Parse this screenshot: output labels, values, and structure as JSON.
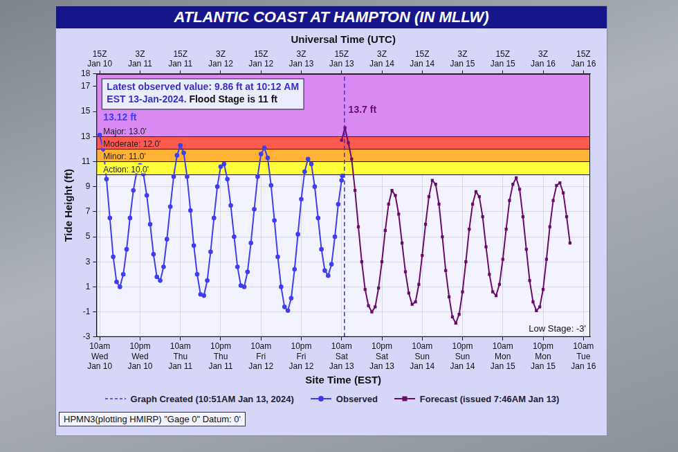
{
  "chart_data": {
    "type": "line",
    "title": "ATLANTIC COAST AT HAMPTON (IN MLLW)",
    "x_label": "Site Time (EST)",
    "x2_label": "Universal Time (UTC)",
    "y_label": "Tide Height (ft)",
    "xlim": [
      -1,
      146
    ],
    "xticks": [
      {
        "value": 0,
        "label": "10am\nWed\nJan 10"
      },
      {
        "value": 12,
        "label": "10pm\nWed\nJan 10"
      },
      {
        "value": 24,
        "label": "10am\nThu\nJan 11"
      },
      {
        "value": 36,
        "label": "10pm\nThu\nJan 11"
      },
      {
        "value": 48,
        "label": "10am\nFri\nJan 12"
      },
      {
        "value": 60,
        "label": "10pm\nFri\nJan 12"
      },
      {
        "value": 72,
        "label": "10am\nSat\nJan 13"
      },
      {
        "value": 84,
        "label": "10pm\nSat\nJan 13"
      },
      {
        "value": 96,
        "label": "10am\nSun\nJan 14"
      },
      {
        "value": 108,
        "label": "10pm\nSun\nJan 14"
      },
      {
        "value": 120,
        "label": "10am\nMon\nJan 15"
      },
      {
        "value": 132,
        "label": "10pm\nMon\nJan 15"
      },
      {
        "value": 144,
        "label": "10am\nTue\nJan 16"
      }
    ],
    "x2lim": [
      -1,
      146
    ],
    "x2ticks": [
      {
        "value": 0,
        "label": "15Z\nJan 10"
      },
      {
        "value": 12,
        "label": "3Z\nJan 11"
      },
      {
        "value": 24,
        "label": "15Z\nJan 11"
      },
      {
        "value": 36,
        "label": "3Z\nJan 12"
      },
      {
        "value": 48,
        "label": "15Z\nJan 12"
      },
      {
        "value": 60,
        "label": "3Z\nJan 13"
      },
      {
        "value": 72,
        "label": "15Z\nJan 13"
      },
      {
        "value": 84,
        "label": "3Z\nJan 14"
      },
      {
        "value": 96,
        "label": "15Z\nJan 14"
      },
      {
        "value": 108,
        "label": "3Z\nJan 15"
      },
      {
        "value": 120,
        "label": "15Z\nJan 15"
      },
      {
        "value": 132,
        "label": "3Z\nJan 16"
      },
      {
        "value": 144,
        "label": "15Z\nJan 16"
      }
    ],
    "ylim": [
      -3,
      18
    ],
    "yticks": [
      -3,
      -1,
      1,
      3,
      5,
      7,
      9,
      11,
      13,
      15,
      17,
      18
    ],
    "grid": true,
    "legend": "bottom",
    "thresholds": [
      {
        "label": "Action: 10.0'",
        "from": 10,
        "to": 11,
        "color": "#ffff3c"
      },
      {
        "label": "Minor: 11.0'",
        "from": 11,
        "to": 12,
        "color": "#ffb236"
      },
      {
        "label": "Moderate: 12.0'",
        "from": 12,
        "to": 13,
        "color": "#ff5a4e"
      },
      {
        "label": "Major: 13.0'",
        "from": 13,
        "to": 18,
        "color": "#d98af2"
      }
    ],
    "series": [
      {
        "name": "Graph Created (10:51AM Jan 13, 2024)",
        "type": "vline",
        "x": 72.85,
        "color": "#3333dd",
        "line_style": "dashed"
      },
      {
        "name": "Observed",
        "color": "#3d3df2",
        "marker": "circle",
        "line_style": "solid",
        "x": [
          0,
          1,
          2,
          3,
          4,
          5,
          6,
          7,
          8,
          9,
          10,
          11,
          12,
          13,
          14,
          15,
          16,
          17,
          18,
          19,
          20,
          21,
          22,
          23,
          24,
          25,
          26,
          27,
          28,
          29,
          30,
          31,
          32,
          33,
          34,
          35,
          36,
          37,
          38,
          39,
          40,
          41,
          42,
          43,
          44,
          45,
          46,
          47,
          48,
          49,
          50,
          51,
          52,
          53,
          54,
          55,
          56,
          57,
          58,
          59,
          60,
          61,
          62,
          63,
          64,
          65,
          66,
          67,
          68,
          69,
          70,
          71,
          72,
          72.2
        ],
        "values": [
          13.12,
          12.0,
          9.6,
          6.5,
          3.4,
          1.4,
          1.0,
          2.0,
          4.0,
          6.5,
          8.7,
          10.2,
          10.7,
          10.0,
          8.3,
          6.0,
          3.6,
          1.8,
          1.5,
          2.6,
          4.8,
          7.4,
          9.8,
          11.5,
          12.3,
          11.7,
          9.8,
          7.1,
          4.3,
          2.0,
          0.4,
          0.3,
          1.5,
          3.8,
          6.5,
          9.0,
          10.6,
          10.8,
          9.6,
          7.5,
          5.0,
          2.6,
          1.1,
          1.0,
          2.2,
          4.5,
          7.2,
          9.8,
          11.6,
          12.1,
          11.3,
          9.1,
          6.3,
          3.4,
          1.0,
          -0.6,
          -0.9,
          0.1,
          2.4,
          5.2,
          8.0,
          10.2,
          11.2,
          10.8,
          9.0,
          6.5,
          4.0,
          2.3,
          1.9,
          2.8,
          5.0,
          7.6,
          9.5,
          9.86
        ]
      },
      {
        "name": "Forecast (issued 7:46AM Jan 13)",
        "color": "#6a0b6a",
        "marker": "square",
        "line_style": "solid",
        "x": [
          72,
          73,
          74,
          75,
          76,
          77,
          78,
          79,
          80,
          81,
          82,
          83,
          84,
          85,
          86,
          87,
          88,
          89,
          90,
          91,
          92,
          93,
          94,
          95,
          96,
          97,
          98,
          99,
          100,
          101,
          102,
          103,
          104,
          105,
          106,
          107,
          108,
          109,
          110,
          111,
          112,
          113,
          114,
          115,
          116,
          117,
          118,
          119,
          120,
          121,
          122,
          123,
          124,
          125,
          126,
          127,
          128,
          129,
          130,
          131,
          132,
          133,
          134,
          135,
          136,
          137,
          138,
          139,
          140
        ],
        "values": [
          12.7,
          13.7,
          12.5,
          11.2,
          8.7,
          5.8,
          3.0,
          0.8,
          -0.5,
          -1.0,
          -0.6,
          0.9,
          3.0,
          5.5,
          7.6,
          8.7,
          8.3,
          6.8,
          4.5,
          2.2,
          0.5,
          -0.4,
          -0.2,
          1.2,
          3.5,
          6.0,
          8.2,
          9.5,
          9.2,
          7.6,
          5.0,
          2.3,
          0.2,
          -1.4,
          -1.9,
          -1.2,
          0.6,
          3.0,
          5.6,
          7.6,
          8.6,
          8.2,
          6.6,
          4.2,
          2.0,
          0.6,
          0.3,
          1.2,
          3.2,
          5.6,
          7.9,
          9.2,
          9.7,
          8.8,
          6.6,
          4.0,
          1.5,
          -0.2,
          -0.9,
          -0.6,
          0.8,
          3.2,
          5.8,
          7.9,
          9.1,
          9.3,
          8.5,
          6.6,
          4.5
        ]
      }
    ],
    "annotations": [
      {
        "text": "13.12 ft",
        "x": 0,
        "y": 13.12,
        "color": "#3d3df2"
      },
      {
        "text": "13.7 ft",
        "x": 73,
        "y": 13.7,
        "color": "#6a0b6a"
      }
    ],
    "info_box": [
      [
        {
          "text": "Latest observed value: 9.86 ft at 10:12 AM",
          "color": "#3333cc"
        }
      ],
      [
        {
          "text": "EST 13-Jan-2024.",
          "color": "#3333cc"
        },
        {
          "text": "Flood Stage is 11 ft",
          "color": "#111111"
        }
      ]
    ],
    "low_stage_label": "Low Stage: -3'",
    "footer": "HPMN3(plotting HMIRP) \"Gage 0\" Datum: 0'"
  }
}
